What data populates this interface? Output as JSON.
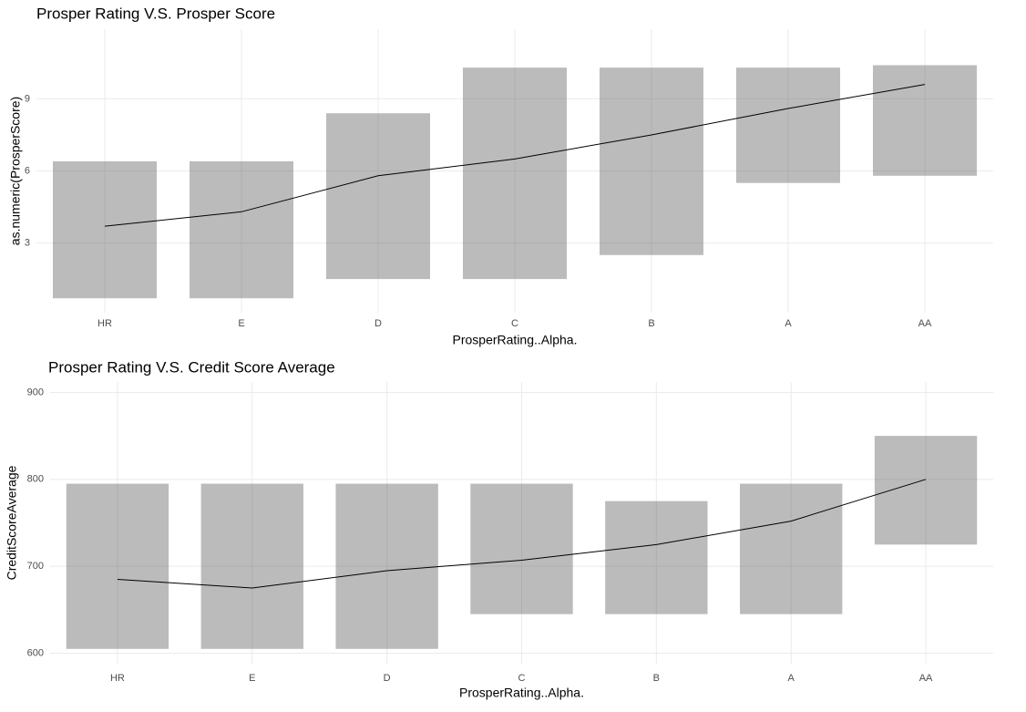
{
  "chart_data": [
    {
      "type": "jitter",
      "title": "Prosper Rating V.S. Prosper Score",
      "xlabel": "ProsperRating..Alpha.",
      "ylabel": "as.numeric(ProsperScore)",
      "categories": [
        "HR",
        "E",
        "D",
        "C",
        "B",
        "A",
        "AA"
      ],
      "ranges": {
        "low": [
          0.7,
          0.7,
          1.5,
          1.5,
          2.5,
          5.5,
          5.8
        ],
        "high": [
          6.4,
          6.4,
          8.4,
          10.3,
          10.3,
          10.3,
          10.4
        ]
      },
      "series": [
        {
          "color": "#000000",
          "values": [
            3.7,
            4.3,
            5.8,
            6.5,
            7.5,
            8.6,
            9.6
          ]
        }
      ],
      "ylim": [
        0.1,
        11.9
      ],
      "yticks": [
        3,
        6,
        9
      ],
      "grid": true
    },
    {
      "type": "jitter",
      "title": "Prosper Rating V.S. Credit Score Average",
      "xlabel": "ProsperRating..Alpha.",
      "ylabel": "CreditScoreAverage",
      "categories": [
        "HR",
        "E",
        "D",
        "C",
        "B",
        "A",
        "AA"
      ],
      "ranges": {
        "low": [
          605,
          605,
          605,
          645,
          645,
          645,
          725
        ],
        "high": [
          795,
          795,
          795,
          795,
          775,
          795,
          850
        ]
      },
      "series": [
        {
          "color": "#000000",
          "values": [
            685,
            675,
            695,
            707,
            725,
            752,
            800
          ]
        }
      ],
      "ylim": [
        588,
        912
      ],
      "yticks": [
        600,
        700,
        800,
        900
      ],
      "grid": true
    }
  ]
}
